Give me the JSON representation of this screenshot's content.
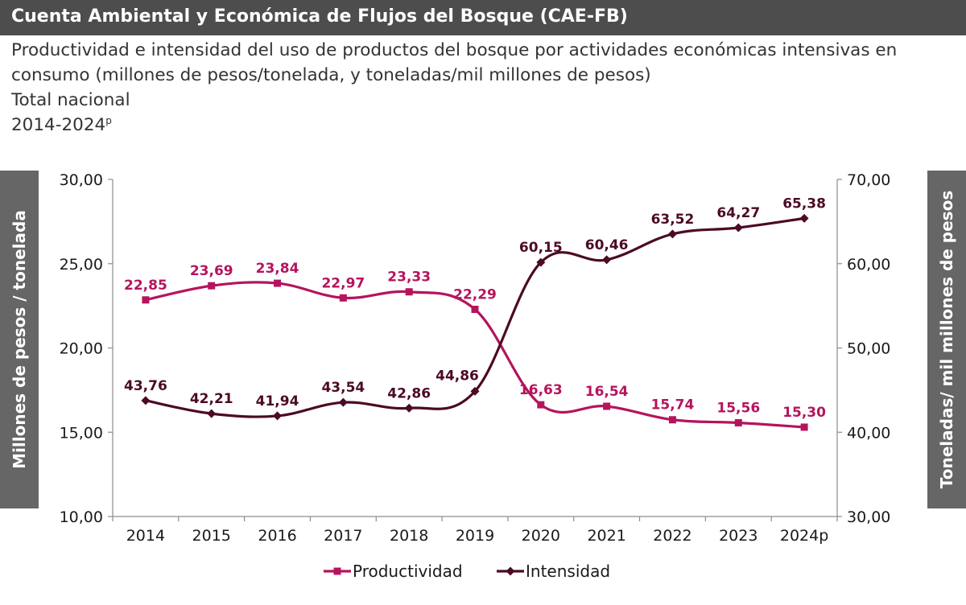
{
  "header": {
    "title": "Cuenta Ambiental y Económica de Flujos del Bosque (CAE-FB)",
    "subtitle_line1": "Productividad e intensidad del uso de productos del bosque por actividades económicas intensivas en",
    "subtitle_line2": "consumo (millones de pesos/tonelada, y toneladas/mil millones de pesos)",
    "subtitle_line3": "Total nacional",
    "subtitle_line4_main": "2014-2024",
    "subtitle_line4_sup": "p"
  },
  "colors": {
    "productividad": "#b5145d",
    "intensidad": "#4b0a26",
    "axis_box": "#666666",
    "header_bg": "#4d4d4d"
  },
  "chart_data": {
    "type": "line",
    "categories": [
      "2014",
      "2015",
      "2016",
      "2017",
      "2018",
      "2019",
      "2020",
      "2021",
      "2022",
      "2023",
      "2024p"
    ],
    "series": [
      {
        "name": "Productividad",
        "axis": "left",
        "marker": "square",
        "values": [
          22.85,
          23.69,
          23.84,
          22.97,
          23.33,
          22.29,
          16.63,
          16.54,
          15.74,
          15.56,
          15.3
        ],
        "labels": [
          "22,85",
          "23,69",
          "23,84",
          "22,97",
          "23,33",
          "22,29",
          "16,63",
          "16,54",
          "15,74",
          "15,56",
          "15,30"
        ]
      },
      {
        "name": "Intensidad",
        "axis": "right",
        "marker": "diamond",
        "values": [
          43.76,
          42.21,
          41.94,
          43.54,
          42.86,
          44.86,
          60.15,
          60.46,
          63.52,
          64.27,
          65.38
        ],
        "labels": [
          "43,76",
          "42,21",
          "41,94",
          "43,54",
          "42,86",
          "44,86",
          "60,15",
          "60,46",
          "63,52",
          "64,27",
          "65,38"
        ]
      }
    ],
    "ylabel_left": "Millones de pesos / tonelada",
    "ylabel_right": "Toneladas/ mil millones de pesos",
    "ylim_left": [
      10,
      30
    ],
    "ylim_right": [
      30,
      70
    ],
    "yticks_left": [
      "10,00",
      "15,00",
      "20,00",
      "25,00",
      "30,00"
    ],
    "yticks_right": [
      "30,00",
      "40,00",
      "50,00",
      "60,00",
      "70,00"
    ],
    "grid": false,
    "legend": "bottom"
  }
}
